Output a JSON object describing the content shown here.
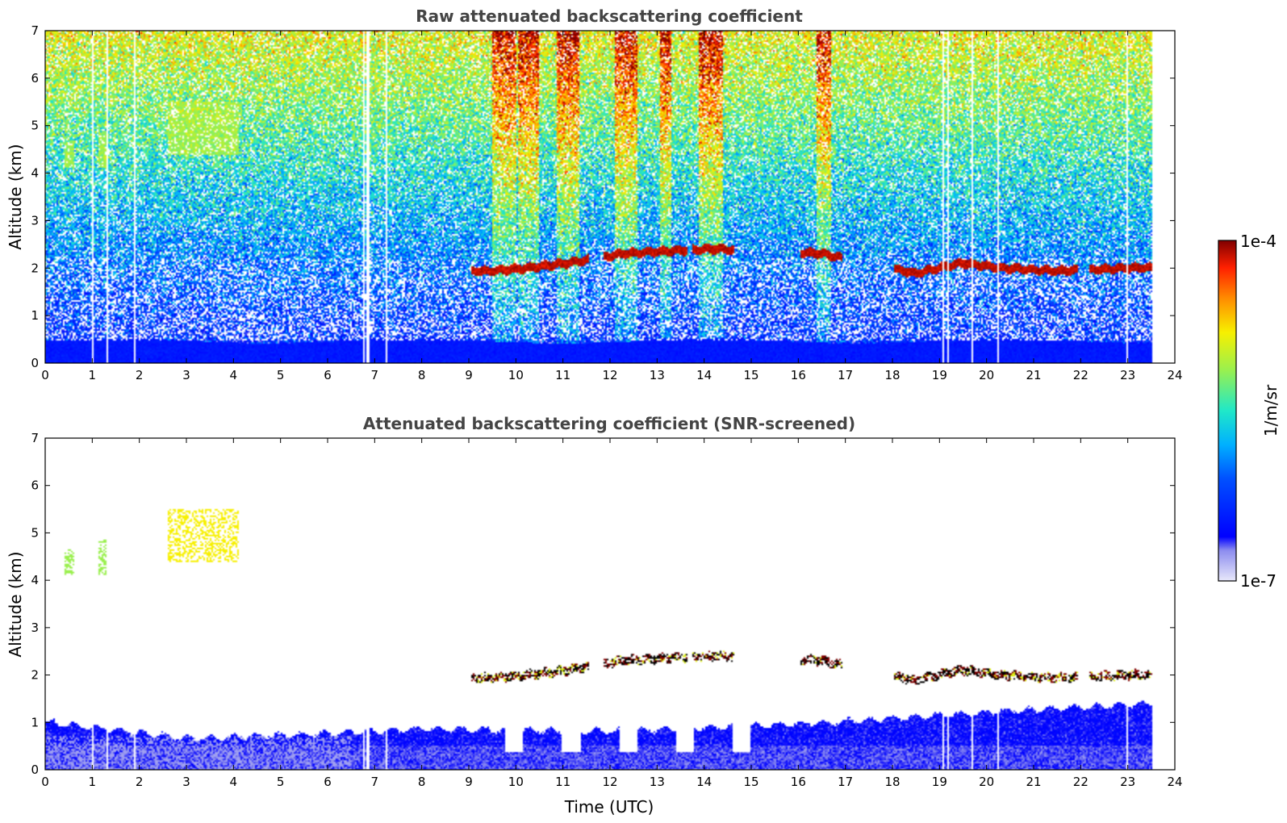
{
  "chart_data": [
    {
      "type": "heatmap",
      "title": "Raw attenuated backscattering coefficient",
      "xlabel": "",
      "ylabel": "Altitude (km)",
      "xlim": [
        0,
        24
      ],
      "ylim": [
        0,
        7
      ],
      "xticks": [
        "0",
        "1",
        "2",
        "3",
        "4",
        "5",
        "6",
        "7",
        "8",
        "9",
        "10",
        "11",
        "12",
        "13",
        "14",
        "15",
        "16",
        "17",
        "18",
        "19",
        "20",
        "21",
        "22",
        "23",
        "24"
      ],
      "yticks": [
        "0",
        "1",
        "2",
        "3",
        "4",
        "5",
        "6",
        "7"
      ],
      "data_end_hour": 23.55,
      "screened": false,
      "features": {
        "near_surface_layer_top_km": 0.45,
        "cloud_layer": [
          {
            "t": 9.5,
            "z": 1.93
          },
          {
            "t": 10.3,
            "z": 2.0
          },
          {
            "t": 11.1,
            "z": 2.1
          },
          {
            "t": 12.3,
            "z": 2.3
          },
          {
            "t": 13.2,
            "z": 2.35
          },
          {
            "t": 14.2,
            "z": 2.4
          },
          {
            "t": 16.5,
            "z": 2.3
          },
          {
            "t": 18.5,
            "z": 1.88
          },
          {
            "t": 19.5,
            "z": 2.1
          },
          {
            "t": 20.3,
            "z": 2.0
          },
          {
            "t": 21.5,
            "z": 1.93
          },
          {
            "t": 23.2,
            "z": 2.0
          }
        ],
        "high_aerosol": [
          {
            "t_start": 0.4,
            "t_end": 0.6,
            "z_bottom": 4.1,
            "z_top": 4.65
          },
          {
            "t_start": 1.1,
            "t_end": 1.3,
            "z_bottom": 4.1,
            "z_top": 4.85
          },
          {
            "t_start": 2.6,
            "t_end": 4.1,
            "z_bottom": 4.4,
            "z_top": 5.5
          }
        ],
        "data_gaps_hours": [
          1.0,
          1.3,
          1.9,
          6.75,
          6.85,
          7.25,
          19.1,
          19.2,
          19.7,
          20.25,
          23.0
        ]
      }
    },
    {
      "type": "heatmap",
      "title": "Attenuated backscattering coefficient (SNR-screened)",
      "xlabel": "Time (UTC)",
      "ylabel": "Altitude (km)",
      "xlim": [
        0,
        24
      ],
      "ylim": [
        0,
        7
      ],
      "xticks": [
        "0",
        "1",
        "2",
        "3",
        "4",
        "5",
        "6",
        "7",
        "8",
        "9",
        "10",
        "11",
        "12",
        "13",
        "14",
        "15",
        "16",
        "17",
        "18",
        "19",
        "20",
        "21",
        "22",
        "23",
        "24"
      ],
      "yticks": [
        "0",
        "1",
        "2",
        "3",
        "4",
        "5",
        "6",
        "7"
      ],
      "data_end_hour": 23.55,
      "screened": true,
      "features": {
        "boundary_layer_top_km": [
          {
            "t": 0,
            "z": 1.0
          },
          {
            "t": 3,
            "z": 0.65
          },
          {
            "t": 6,
            "z": 0.75
          },
          {
            "t": 8,
            "z": 0.85
          },
          {
            "t": 12,
            "z": 0.8
          },
          {
            "t": 16,
            "z": 0.95
          },
          {
            "t": 20,
            "z": 1.2
          },
          {
            "t": 23.55,
            "z": 1.4
          }
        ]
      }
    }
  ],
  "colorbar": {
    "label": "1/m/sr",
    "min_label": "1e-7",
    "max_label": "1e-4",
    "scale": "log",
    "colormap": "jet",
    "low_end_colors": [
      "#ffffff",
      "#e6e6fa",
      "#c4c4f4",
      "#9f9ff0",
      "#7a7aec"
    ]
  }
}
